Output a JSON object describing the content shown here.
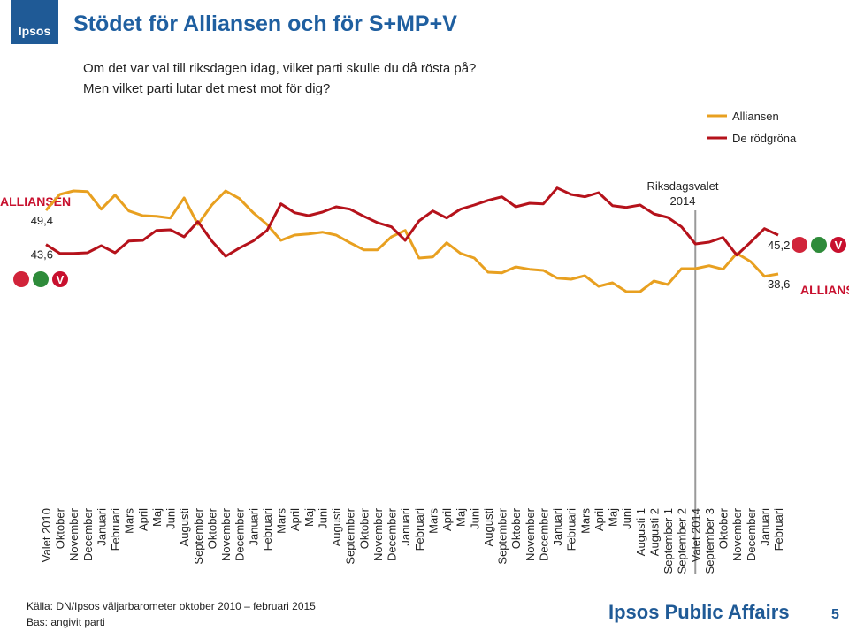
{
  "chart_data": {
    "type": "line",
    "title": "Stödet för Alliansen och för S+MP+V",
    "subtitle": [
      "Om det var val till riksdagen idag, vilket parti skulle du då rösta på?",
      "Men vilket parti lutar det mest mot för dig?"
    ],
    "categories": [
      "Valet 2010",
      "Oktober",
      "November",
      "December",
      "Januari",
      "Februari",
      "Mars",
      "April",
      "Maj",
      "Juni",
      "Augusti",
      "September",
      "Oktober",
      "November",
      "December",
      "Januari",
      "Februari",
      "Mars",
      "April",
      "Maj",
      "Juni",
      "Augusti",
      "September",
      "Oktober",
      "November",
      "December",
      "Januari",
      "Februari",
      "Mars",
      "April",
      "Maj",
      "Juni",
      "Augusti",
      "September",
      "Oktober",
      "November",
      "December",
      "Januari",
      "Februari",
      "Mars",
      "April",
      "Maj",
      "Juni",
      "Augusti 1",
      "Augusti 2",
      "September 1",
      "September 2",
      "Valet 2014",
      "September 3",
      "Oktober",
      "November",
      "December",
      "Januari",
      "Februari"
    ],
    "ylim": [
      30,
      60
    ],
    "series": [
      {
        "name": "Alliansen",
        "color": "#e8a020",
        "values": [
          49.4,
          52.1,
          52.7,
          52.6,
          49.6,
          52.0,
          49.3,
          48.5,
          48.4,
          48.1,
          51.5,
          47.0,
          50.3,
          52.7,
          51.4,
          49.0,
          47.0,
          44.3,
          45.2,
          45.4,
          45.7,
          45.2,
          43.9,
          42.7,
          42.7,
          44.9,
          46.0,
          41.3,
          41.5,
          43.9,
          42.1,
          41.3,
          38.9,
          38.8,
          39.8,
          39.4,
          39.2,
          37.9,
          37.7,
          38.3,
          36.5,
          37.1,
          35.6,
          35.6,
          37.4,
          36.8,
          39.5,
          39.5,
          40.0,
          39.4,
          42.1,
          40.7,
          38.2,
          38.6
        ],
        "value_labels": [
          "49,4",
          null,
          null,
          null,
          null,
          null,
          null,
          null,
          null,
          null,
          null,
          null,
          null,
          null,
          null,
          null,
          null,
          null,
          null,
          null,
          null,
          null,
          null,
          null,
          null,
          null,
          null,
          null,
          null,
          null,
          null,
          null,
          null,
          null,
          null,
          null,
          null,
          null,
          null,
          null,
          null,
          null,
          null,
          null,
          null,
          null,
          null,
          null,
          null,
          null,
          null,
          null,
          null,
          "38,6"
        ]
      },
      {
        "name": "De rödgröna",
        "color": "#b5121b",
        "values": [
          43.6,
          42.1,
          42.1,
          42.2,
          43.4,
          42.2,
          44.2,
          44.3,
          46.0,
          46.1,
          44.9,
          47.5,
          44.2,
          41.6,
          43.0,
          44.2,
          46.0,
          50.5,
          49.0,
          48.5,
          49.1,
          50.0,
          49.6,
          48.4,
          47.3,
          46.6,
          44.3,
          47.6,
          49.3,
          48.1,
          49.6,
          50.3,
          51.1,
          51.7,
          50.0,
          50.6,
          50.5,
          53.2,
          52.1,
          51.7,
          52.4,
          50.2,
          49.9,
          50.3,
          48.8,
          48.2,
          46.6,
          43.7,
          44.0,
          44.8,
          41.8,
          44.0,
          46.3,
          45.2
        ],
        "value_labels": [
          "43,6",
          null,
          null,
          null,
          null,
          null,
          null,
          null,
          null,
          null,
          null,
          null,
          null,
          null,
          null,
          null,
          null,
          null,
          null,
          null,
          null,
          null,
          null,
          null,
          null,
          null,
          null,
          null,
          null,
          null,
          null,
          null,
          null,
          null,
          null,
          null,
          null,
          null,
          null,
          null,
          null,
          null,
          null,
          null,
          null,
          null,
          null,
          null,
          null,
          null,
          null,
          null,
          null,
          "45,2"
        ]
      }
    ],
    "annotation": {
      "text": "Riksdagsvalet 2014",
      "category_index": 47
    },
    "logos": {
      "ipsos": "Ipsos",
      "alliansen": "ALLIANSEN",
      "v": "V"
    },
    "footer": {
      "source": "Källa: DN/Ipsos väljarbarometer oktober 2010 – februari 2015",
      "base": "Bas: angivit parti",
      "brand": "Ipsos Public Affairs",
      "page": "5"
    }
  }
}
